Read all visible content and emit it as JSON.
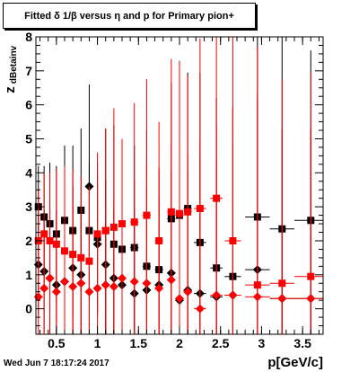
{
  "title": "Fitted δ 1/β versus η and p for Primary pion+",
  "timestamp": "Wed Jun  7 18:17:24 2017",
  "xlabel": "p[GeV/c]",
  "ylabel": {
    "main": "z",
    "sub": "dBetainv"
  },
  "chart_data": {
    "type": "scatter",
    "title": "Fitted δ 1/β versus η and p for Primary pion+",
    "xlabel": "p[GeV/c]",
    "ylabel": "z_dBetainv",
    "xlim": [
      0.25,
      3.75
    ],
    "ylim": [
      -0.75,
      8.0
    ],
    "xticks": [
      0.5,
      1,
      1.5,
      2,
      2.5,
      3,
      3.5
    ],
    "xtick_labels": [
      "0.5",
      "1",
      "1.5",
      "2",
      "2.5",
      "3",
      "3.5"
    ],
    "yticks": [
      0,
      1,
      2,
      3,
      4,
      5,
      6,
      7,
      8
    ],
    "ytick_labels": [
      "0",
      "1",
      "2",
      "3",
      "4",
      "5",
      "6",
      "7",
      "8"
    ],
    "grid": false,
    "legend": "none",
    "series": [
      {
        "color": "#000000",
        "marker": "square",
        "points": [
          {
            "x": 0.28,
            "y": 3.0,
            "ex": 0.02,
            "ey": 1.2
          },
          {
            "x": 0.35,
            "y": 2.7,
            "ex": 0.02,
            "ey": 1.5
          },
          {
            "x": 0.42,
            "y": 2.5,
            "ex": 0.02,
            "ey": 1.8
          },
          {
            "x": 0.5,
            "y": 2.2,
            "ex": 0.025,
            "ey": 2.0
          },
          {
            "x": 0.6,
            "y": 2.6,
            "ex": 0.025,
            "ey": 2.2
          },
          {
            "x": 0.7,
            "y": 2.3,
            "ex": 0.025,
            "ey": 2.5
          },
          {
            "x": 0.8,
            "y": 2.9,
            "ex": 0.025,
            "ey": 2.4
          },
          {
            "x": 0.9,
            "y": 2.3,
            "ex": 0.025,
            "ey": 2.0
          },
          {
            "x": 1.0,
            "y": 2.1,
            "ex": 0.025,
            "ey": 2.2
          },
          {
            "x": 1.1,
            "y": 2.3,
            "ex": 0.025,
            "ey": 3.0
          },
          {
            "x": 1.2,
            "y": 1.9,
            "ex": 0.025,
            "ey": 3.5
          },
          {
            "x": 1.3,
            "y": 1.75,
            "ex": 0.025,
            "ey": 2.0
          },
          {
            "x": 1.45,
            "y": 1.8,
            "ex": 0.05,
            "ey": 3.0
          },
          {
            "x": 1.6,
            "y": 1.25,
            "ex": 0.05,
            "ey": 4.0
          },
          {
            "x": 1.75,
            "y": 1.15,
            "ex": 0.05,
            "ey": 3.0
          },
          {
            "x": 1.9,
            "y": 2.65,
            "ex": 0.05,
            "ey": 4.0
          },
          {
            "x": 2.0,
            "y": 2.75,
            "ex": 0.05,
            "ey": 4.5
          },
          {
            "x": 2.1,
            "y": 2.95,
            "ex": 0.05,
            "ey": 4.0
          },
          {
            "x": 2.25,
            "y": 1.95,
            "ex": 0.075,
            "ey": 5.0
          },
          {
            "x": 2.45,
            "y": 1.2,
            "ex": 0.075,
            "ey": 5.0
          },
          {
            "x": 2.65,
            "y": 0.95,
            "ex": 0.1,
            "ey": 5.0
          },
          {
            "x": 2.95,
            "y": 2.7,
            "ex": 0.15,
            "ey": 8.0
          },
          {
            "x": 3.25,
            "y": 2.35,
            "ex": 0.15,
            "ey": 6.0
          },
          {
            "x": 3.6,
            "y": 2.6,
            "ex": 0.2,
            "ey": 5.0
          }
        ]
      },
      {
        "color": "#000000",
        "marker": "diamond",
        "points": [
          {
            "x": 0.28,
            "y": 1.3,
            "ex": 0.02,
            "ey": 1.5
          },
          {
            "x": 0.35,
            "y": 1.1,
            "ex": 0.02,
            "ey": 1.8
          },
          {
            "x": 0.42,
            "y": 0.9,
            "ex": 0.02,
            "ey": 2.0
          },
          {
            "x": 0.5,
            "y": 0.7,
            "ex": 0.025,
            "ey": 2.2
          },
          {
            "x": 0.6,
            "y": 0.8,
            "ex": 0.025,
            "ey": 2.5
          },
          {
            "x": 0.7,
            "y": 1.2,
            "ex": 0.025,
            "ey": 2.4
          },
          {
            "x": 0.8,
            "y": 1.0,
            "ex": 0.025,
            "ey": 2.0
          },
          {
            "x": 0.9,
            "y": 3.6,
            "ex": 0.025,
            "ey": 3.0
          },
          {
            "x": 1.0,
            "y": 1.9,
            "ex": 0.025,
            "ey": 2.0
          },
          {
            "x": 1.1,
            "y": 1.3,
            "ex": 0.025,
            "ey": 2.5
          },
          {
            "x": 1.2,
            "y": 0.9,
            "ex": 0.025,
            "ey": 2.0
          },
          {
            "x": 1.3,
            "y": 0.7,
            "ex": 0.025,
            "ey": 2.0
          },
          {
            "x": 1.45,
            "y": 0.45,
            "ex": 0.05,
            "ey": 2.5
          },
          {
            "x": 1.6,
            "y": 0.55,
            "ex": 0.05,
            "ey": 3.0
          },
          {
            "x": 1.75,
            "y": 0.7,
            "ex": 0.05,
            "ey": 2.5
          },
          {
            "x": 1.9,
            "y": 1.05,
            "ex": 0.05,
            "ey": 3.0
          },
          {
            "x": 2.0,
            "y": 0.25,
            "ex": 0.05,
            "ey": 3.0
          },
          {
            "x": 2.1,
            "y": 0.55,
            "ex": 0.05,
            "ey": 3.5
          },
          {
            "x": 2.25,
            "y": 0.45,
            "ex": 0.075,
            "ey": 4.0
          },
          {
            "x": 2.45,
            "y": 0.35,
            "ex": 0.075,
            "ey": 4.0
          },
          {
            "x": 2.65,
            "y": 0.4,
            "ex": 0.1,
            "ey": 4.5
          },
          {
            "x": 2.95,
            "y": 1.15,
            "ex": 0.15,
            "ey": 5.0
          },
          {
            "x": 3.25,
            "y": 0.3,
            "ex": 0.15,
            "ey": 5.0
          },
          {
            "x": 3.6,
            "y": 0.3,
            "ex": 0.2,
            "ey": 5.0
          }
        ]
      },
      {
        "color": "#ff0000",
        "marker": "square",
        "points": [
          {
            "x": 0.28,
            "y": 2.0,
            "ex": 0.02,
            "ey": 1.5
          },
          {
            "x": 0.35,
            "y": 2.2,
            "ex": 0.02,
            "ey": 1.8
          },
          {
            "x": 0.42,
            "y": 2.0,
            "ex": 0.02,
            "ey": 2.0
          },
          {
            "x": 0.5,
            "y": 1.9,
            "ex": 0.025,
            "ey": 2.2
          },
          {
            "x": 0.6,
            "y": 1.7,
            "ex": 0.025,
            "ey": 2.5
          },
          {
            "x": 0.7,
            "y": 1.6,
            "ex": 0.025,
            "ey": 2.5
          },
          {
            "x": 0.8,
            "y": 1.5,
            "ex": 0.025,
            "ey": 2.4
          },
          {
            "x": 0.9,
            "y": 1.4,
            "ex": 0.025,
            "ey": 2.2
          },
          {
            "x": 1.0,
            "y": 2.2,
            "ex": 0.025,
            "ey": 2.4
          },
          {
            "x": 1.1,
            "y": 2.3,
            "ex": 0.025,
            "ey": 3.0
          },
          {
            "x": 1.2,
            "y": 2.4,
            "ex": 0.025,
            "ey": 3.5
          },
          {
            "x": 1.3,
            "y": 2.5,
            "ex": 0.025,
            "ey": 2.5
          },
          {
            "x": 1.45,
            "y": 2.55,
            "ex": 0.05,
            "ey": 3.5
          },
          {
            "x": 1.6,
            "y": 2.75,
            "ex": 0.05,
            "ey": 4.0
          },
          {
            "x": 1.75,
            "y": 2.0,
            "ex": 0.05,
            "ey": 3.5
          },
          {
            "x": 1.9,
            "y": 2.85,
            "ex": 0.05,
            "ey": 4.5
          },
          {
            "x": 2.0,
            "y": 2.8,
            "ex": 0.05,
            "ey": 4.5
          },
          {
            "x": 2.1,
            "y": 2.85,
            "ex": 0.05,
            "ey": 4.0
          },
          {
            "x": 2.25,
            "y": 2.95,
            "ex": 0.075,
            "ey": 5.0
          },
          {
            "x": 2.45,
            "y": 3.25,
            "ex": 0.075,
            "ey": 5.5
          },
          {
            "x": 2.65,
            "y": 2.0,
            "ex": 0.1,
            "ey": 6.0
          },
          {
            "x": 2.95,
            "y": 0.7,
            "ex": 0.15,
            "ey": 7.0
          },
          {
            "x": 3.25,
            "y": 0.75,
            "ex": 0.15,
            "ey": 6.0
          },
          {
            "x": 3.6,
            "y": 0.95,
            "ex": 0.2,
            "ey": 6.0
          }
        ]
      },
      {
        "color": "#ff0000",
        "marker": "diamond",
        "points": [
          {
            "x": 0.28,
            "y": 0.35,
            "ex": 0.02,
            "ey": 1.5
          },
          {
            "x": 0.35,
            "y": 0.6,
            "ex": 0.02,
            "ey": 1.8
          },
          {
            "x": 0.42,
            "y": 0.9,
            "ex": 0.02,
            "ey": 2.0
          },
          {
            "x": 0.5,
            "y": 0.5,
            "ex": 0.025,
            "ey": 2.2
          },
          {
            "x": 0.6,
            "y": 0.8,
            "ex": 0.025,
            "ey": 2.5
          },
          {
            "x": 0.7,
            "y": 0.65,
            "ex": 0.025,
            "ey": 2.4
          },
          {
            "x": 0.8,
            "y": 0.75,
            "ex": 0.025,
            "ey": 2.0
          },
          {
            "x": 0.9,
            "y": 0.5,
            "ex": 0.025,
            "ey": 2.0
          },
          {
            "x": 1.0,
            "y": 0.6,
            "ex": 0.025,
            "ey": 2.5
          },
          {
            "x": 1.1,
            "y": 0.7,
            "ex": 0.025,
            "ey": 2.5
          },
          {
            "x": 1.2,
            "y": 0.65,
            "ex": 0.025,
            "ey": 2.5
          },
          {
            "x": 1.3,
            "y": 0.9,
            "ex": 0.025,
            "ey": 3.0
          },
          {
            "x": 1.45,
            "y": 0.8,
            "ex": 0.05,
            "ey": 3.0
          },
          {
            "x": 1.6,
            "y": 0.75,
            "ex": 0.05,
            "ey": 3.5
          },
          {
            "x": 1.75,
            "y": 0.6,
            "ex": 0.05,
            "ey": 3.5
          },
          {
            "x": 1.9,
            "y": 0.85,
            "ex": 0.05,
            "ey": 4.0
          },
          {
            "x": 2.0,
            "y": 0.3,
            "ex": 0.05,
            "ey": 4.0
          },
          {
            "x": 2.1,
            "y": 0.5,
            "ex": 0.05,
            "ey": 4.0
          },
          {
            "x": 2.25,
            "y": 0.0,
            "ex": 0.075,
            "ey": 5.0
          },
          {
            "x": 2.45,
            "y": 0.4,
            "ex": 0.075,
            "ey": 5.0
          },
          {
            "x": 2.65,
            "y": 0.4,
            "ex": 0.1,
            "ey": 5.5
          },
          {
            "x": 2.95,
            "y": 0.35,
            "ex": 0.15,
            "ey": 6.0
          },
          {
            "x": 3.25,
            "y": 0.3,
            "ex": 0.15,
            "ey": 5.0
          },
          {
            "x": 3.6,
            "y": 0.3,
            "ex": 0.2,
            "ey": 5.0
          }
        ]
      }
    ]
  }
}
